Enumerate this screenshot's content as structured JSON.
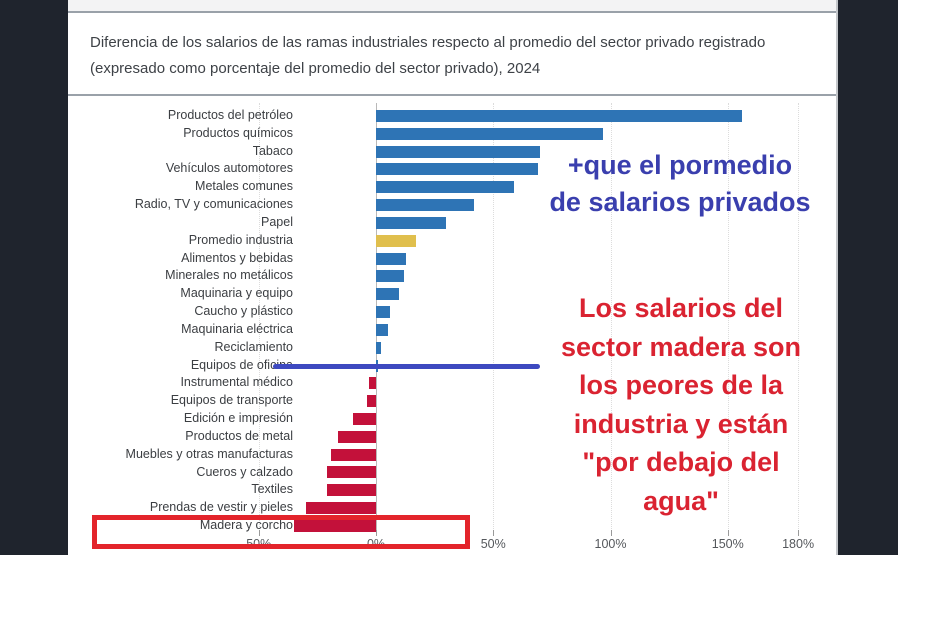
{
  "header": {
    "title_line1": "Diferencia de los salarios de las ramas industriales respecto al promedio del sector privado registrado",
    "title_line2": "(expresado como porcentaje del promedio del sector privado), 2024"
  },
  "chart_data": {
    "type": "bar",
    "orientation": "horizontal",
    "title": "Diferencia de los salarios de las ramas industriales respecto al promedio del sector privado registrado (expresado como porcentaje del promedio del sector privado), 2024",
    "unit": "%",
    "categories": [
      "Productos del petróleo",
      "Productos químicos",
      "Tabaco",
      "Vehículos automotores",
      "Metales comunes",
      "Radio, TV y comunicaciones",
      "Papel",
      "Promedio industria",
      "Alimentos y bebidas",
      "Minerales no metálicos",
      "Maquinaria y equipo",
      "Caucho y plástico",
      "Maquinaria eléctrica",
      "Reciclamiento",
      "Equipos de oficina",
      "Instrumental médico",
      "Equipos de transporte",
      "Edición e impresión",
      "Productos de metal",
      "Muebles y otras manufacturas",
      "Cueros y calzado",
      "Textiles",
      "Prendas de vestir y pieles",
      "Madera y corcho"
    ],
    "values": [
      156,
      97,
      70,
      69,
      59,
      42,
      30,
      17,
      13,
      12,
      10,
      6,
      5,
      2,
      1,
      -3,
      -4,
      -10,
      -16,
      -19,
      -21,
      -21,
      -30,
      -35
    ],
    "average_category": "Promedio industria",
    "x_ticks": [
      {
        "value": -50,
        "label": "50%"
      },
      {
        "value": 0,
        "label": "0%"
      },
      {
        "value": 50,
        "label": "50%"
      },
      {
        "value": 100,
        "label": "100%"
      },
      {
        "value": 150,
        "label": "150%"
      },
      {
        "value": 180,
        "label": "180%"
      }
    ],
    "xlim": [
      -50,
      197
    ],
    "grid": "vertical-dotted",
    "legend": "none",
    "colors": {
      "positive_bar": "#2e74b5",
      "negative_bar": "#c3113a",
      "average_bar": "#e0bf4d"
    }
  },
  "annotations": {
    "blue_note_lines": [
      "+que el pormedio",
      "de salarios privados"
    ],
    "blue_note_color": "#3a3fae",
    "red_note_lines": [
      "Los salarios del",
      "sector madera son",
      "los peores de la",
      "industria y están",
      "\"por debajo del",
      "agua\""
    ],
    "red_note_color": "#da2331",
    "blue_line_color": "#3d49c0",
    "red_rect_color": "#e3242b"
  }
}
